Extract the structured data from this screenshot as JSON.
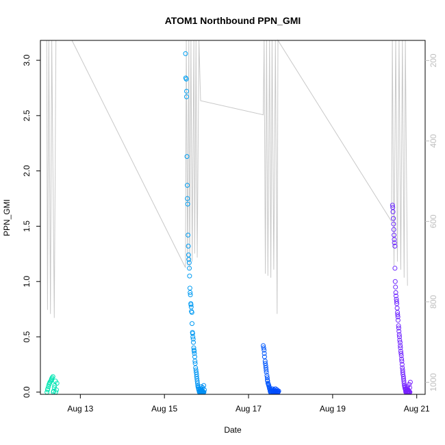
{
  "chart_data": {
    "type": "scatter",
    "title": "ATOM1 Northbound PPN_GMI",
    "xlabel": "Date",
    "ylabel": "PPN_GMI",
    "x_ticks": [
      "Aug 13",
      "Aug 15",
      "Aug 17",
      "Aug 19",
      "Aug 21"
    ],
    "y_ticks": [
      "0.0",
      "0.5",
      "1.0",
      "1.5",
      "2.0",
      "2.5",
      "3.0"
    ],
    "y_right_ticks": [
      "200",
      "400",
      "600",
      "800",
      "1000"
    ],
    "xlim_days": [
      12.05,
      21.2
    ],
    "ylim": [
      -0.02,
      3.18
    ],
    "y_right_lim_inverted": [
      1030,
      150
    ],
    "colors": {
      "point_start": "#00e8b0",
      "point_mid": "#00b0f0",
      "point_blue": "#0040ff",
      "point_end": "#7a20ff",
      "depth_line": "#c8c8c8",
      "axis": "#000000",
      "right_axis": "#bebebe"
    },
    "scatter_clusters": [
      {
        "day_start": 12.2,
        "day_end": 12.45,
        "values": [
          0.0,
          0.02,
          0.03,
          0.05,
          0.07,
          0.08,
          0.09,
          0.1,
          0.11,
          0.12,
          0.13,
          0.14,
          0.0,
          0.01,
          0.04,
          0.06,
          0.1,
          0.0,
          0.02,
          0.08
        ]
      },
      {
        "day_start": 15.5,
        "day_end": 15.95,
        "values": [
          3.06,
          2.84,
          2.83,
          2.72,
          2.67,
          2.13,
          1.87,
          1.75,
          1.7,
          1.42,
          1.32,
          1.24,
          1.2,
          1.17,
          1.12,
          1.05,
          0.94,
          0.9,
          0.88,
          0.8,
          0.79,
          0.77,
          0.73,
          0.72,
          0.62,
          0.54,
          0.53,
          0.5,
          0.48,
          0.45,
          0.4,
          0.38,
          0.37,
          0.35,
          0.32,
          0.28,
          0.26,
          0.22,
          0.2,
          0.18,
          0.16,
          0.14,
          0.12,
          0.1,
          0.08,
          0.06,
          0.05,
          0.04,
          0.03,
          0.02,
          0.01,
          0.0,
          0.0,
          0.01,
          0.02,
          0.0,
          0.03,
          0.0,
          0.05,
          0.0,
          0.02,
          0.0,
          0.01,
          0.0,
          0.04,
          0.0,
          0.0,
          0.06,
          0.0,
          0.02
        ]
      },
      {
        "day_start": 17.35,
        "day_end": 17.72,
        "values": [
          0.42,
          0.4,
          0.38,
          0.35,
          0.32,
          0.28,
          0.26,
          0.24,
          0.22,
          0.2,
          0.18,
          0.15,
          0.13,
          0.11,
          0.1,
          0.08,
          0.07,
          0.06,
          0.05,
          0.04,
          0.03,
          0.02,
          0.01,
          0.0,
          0.0,
          0.01,
          0.02,
          0.0,
          0.01,
          0.03,
          0.0,
          0.02,
          0.0,
          0.01,
          0.0,
          0.0,
          0.02,
          0.01,
          0.0,
          0.03,
          0.0,
          0.01,
          0.0,
          0.0,
          0.02,
          0.0,
          0.01,
          0.0,
          0.0,
          0.01
        ]
      },
      {
        "day_start": 20.42,
        "day_end": 20.85,
        "values": [
          1.69,
          1.67,
          1.63,
          1.57,
          1.52,
          1.47,
          1.42,
          1.38,
          1.35,
          1.32,
          1.12,
          1.0,
          0.95,
          0.9,
          0.87,
          0.84,
          0.82,
          0.8,
          0.76,
          0.72,
          0.7,
          0.68,
          0.65,
          0.6,
          0.58,
          0.55,
          0.52,
          0.5,
          0.47,
          0.45,
          0.42,
          0.4,
          0.37,
          0.35,
          0.33,
          0.3,
          0.28,
          0.25,
          0.22,
          0.2,
          0.18,
          0.16,
          0.14,
          0.12,
          0.1,
          0.08,
          0.06,
          0.05,
          0.04,
          0.03,
          0.02,
          0.01,
          0.0,
          0.0,
          0.01,
          0.02,
          0.0,
          0.03,
          0.0,
          0.05,
          0.0,
          0.02,
          0.0,
          0.01,
          0.07,
          0.0,
          0.0,
          0.04,
          0.0,
          0.09
        ]
      }
    ],
    "depth_segments": [
      [
        [
          12.2,
          150
        ],
        [
          12.22,
          820
        ],
        [
          12.25,
          150
        ],
        [
          12.29,
          830
        ],
        [
          12.32,
          150
        ],
        [
          12.38,
          840
        ],
        [
          12.42,
          150
        ]
      ],
      [
        [
          12.8,
          150
        ],
        [
          15.5,
          715
        ],
        [
          15.52,
          150
        ],
        [
          15.55,
          710
        ],
        [
          15.58,
          150
        ],
        [
          15.6,
          720
        ],
        [
          15.63,
          150
        ],
        [
          15.66,
          700
        ],
        [
          15.7,
          150
        ],
        [
          15.72,
          680
        ],
        [
          15.75,
          150
        ],
        [
          15.78,
          690
        ],
        [
          15.82,
          150
        ],
        [
          15.86,
          300
        ],
        [
          17.35,
          335
        ],
        [
          17.37,
          150
        ],
        [
          17.4,
          730
        ],
        [
          17.43,
          150
        ],
        [
          17.46,
          735
        ],
        [
          17.5,
          150
        ],
        [
          17.53,
          740
        ],
        [
          17.56,
          150
        ],
        [
          17.6,
          720
        ],
        [
          17.64,
          150
        ],
        [
          17.68,
          830
        ],
        [
          17.7,
          150
        ],
        [
          20.4,
          600
        ],
        [
          20.42,
          150
        ],
        [
          20.46,
          710
        ],
        [
          20.5,
          150
        ],
        [
          20.54,
          700
        ],
        [
          20.58,
          150
        ],
        [
          20.62,
          720
        ],
        [
          20.66,
          150
        ],
        [
          20.7,
          740
        ],
        [
          20.73,
          150
        ],
        [
          20.78,
          760
        ]
      ]
    ]
  }
}
